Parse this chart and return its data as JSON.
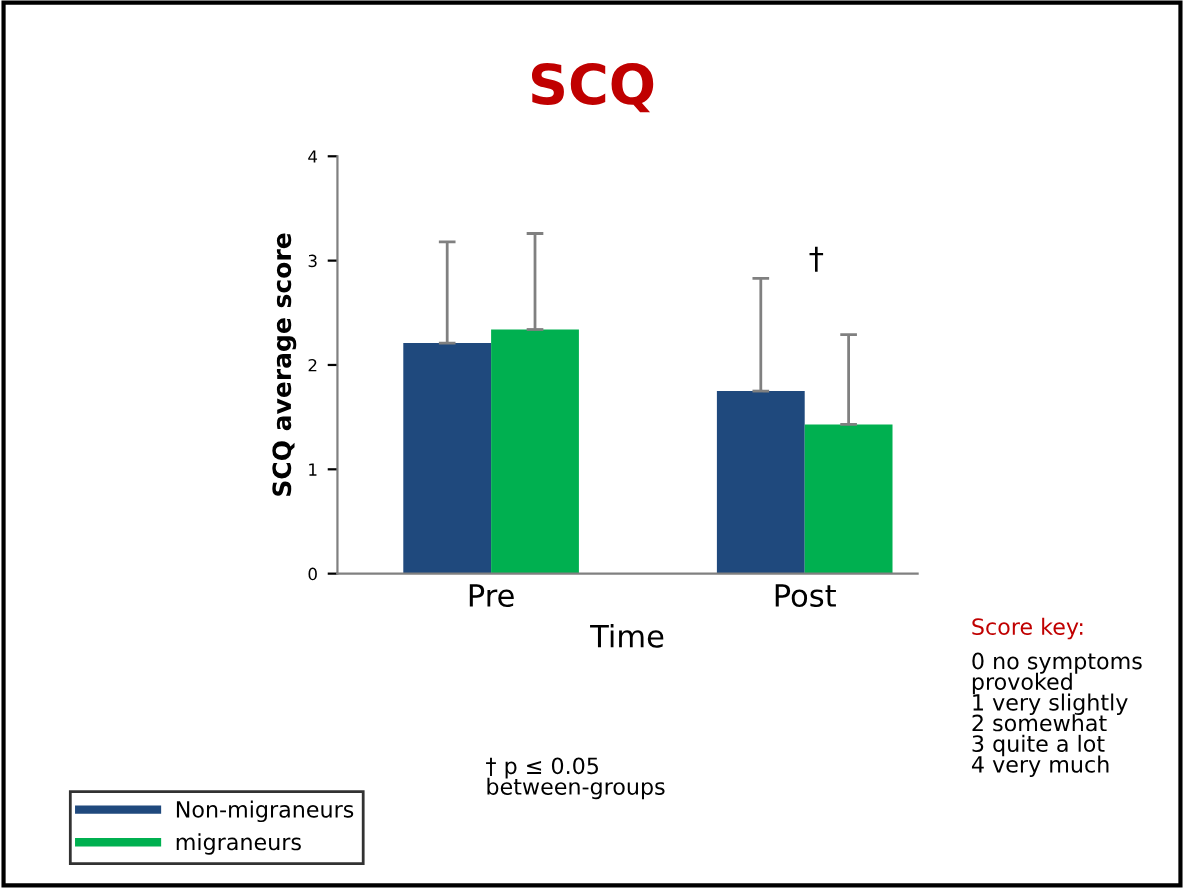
{
  "chart_data": {
    "type": "bar",
    "title": "SCQ",
    "ylabel": "SCQ average score",
    "xlabel": "Time",
    "categories": [
      "Pre",
      "Post"
    ],
    "series": [
      {
        "name": "Non-migraneurs",
        "color": "#1f497d",
        "values": [
          2.21,
          1.75
        ],
        "errors": [
          [
            2.21,
            3.18
          ],
          [
            1.75,
            2.83
          ]
        ]
      },
      {
        "name": "migraneurs",
        "color": "#00b050",
        "values": [
          2.34,
          1.43
        ],
        "errors": [
          [
            2.34,
            3.26
          ],
          [
            1.43,
            2.29
          ]
        ]
      }
    ],
    "ylim": [
      0,
      4
    ],
    "yticks": [
      0,
      1,
      2,
      3,
      4
    ],
    "grid": false,
    "legend": "bottom left",
    "annotations": [
      "†",
      "† p ≤ 0.05\nbetween-groups",
      "Score key:",
      "0 no symptoms\nprovoked\n1 very slightly\n2 somewhat\n3 quite a lot\n4 very much"
    ]
  }
}
